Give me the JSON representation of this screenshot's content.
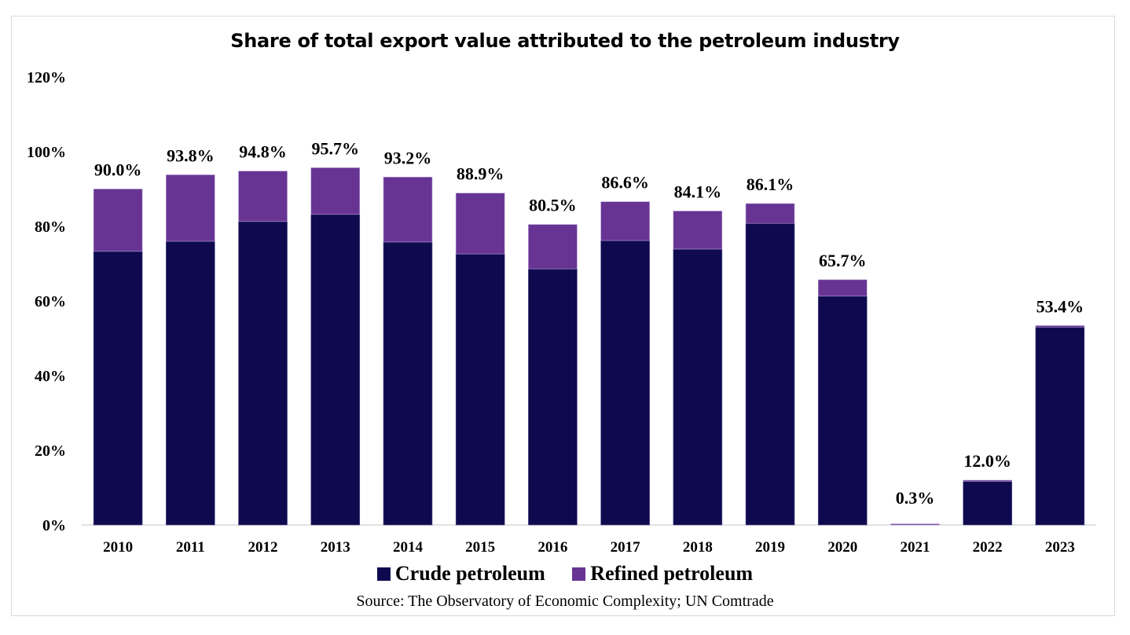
{
  "chart_data": {
    "type": "bar",
    "stacked": true,
    "title": "Share of total export value attributed to the petroleum industry",
    "xlabel": "",
    "ylabel": "",
    "ylim": [
      0,
      120
    ],
    "yticks": [
      "0%",
      "20%",
      "40%",
      "60%",
      "80%",
      "100%",
      "120%"
    ],
    "ytick_values": [
      0,
      20,
      40,
      60,
      80,
      100,
      120
    ],
    "grid": false,
    "legend_position": "bottom",
    "categories": [
      "2010",
      "2011",
      "2012",
      "2013",
      "2014",
      "2015",
      "2016",
      "2017",
      "2018",
      "2019",
      "2020",
      "2021",
      "2022",
      "2023"
    ],
    "series": [
      {
        "name": "Crude petroleum",
        "color": "#0f0a4f",
        "values": [
          73.3,
          76.0,
          81.3,
          83.2,
          75.8,
          72.6,
          68.6,
          76.2,
          73.9,
          80.8,
          61.3,
          0.0,
          11.7,
          53.0
        ]
      },
      {
        "name": "Refined petroleum",
        "color": "#673494",
        "values": [
          16.7,
          17.8,
          13.5,
          12.5,
          17.4,
          16.3,
          11.9,
          10.4,
          10.2,
          5.3,
          4.4,
          0.3,
          0.3,
          0.4
        ]
      }
    ],
    "totals": [
      90.0,
      93.8,
      94.8,
      95.7,
      93.2,
      88.9,
      80.5,
      86.6,
      84.1,
      86.1,
      65.7,
      0.3,
      12.0,
      53.4
    ],
    "total_labels": [
      "90.0%",
      "93.8%",
      "94.8%",
      "95.7%",
      "93.2%",
      "88.9%",
      "80.5%",
      "86.6%",
      "84.1%",
      "86.1%",
      "65.7%",
      "0.3%",
      "12.0%",
      "53.4%"
    ],
    "source": "Source: The Observatory of Economic Complexity; UN Comtrade"
  }
}
